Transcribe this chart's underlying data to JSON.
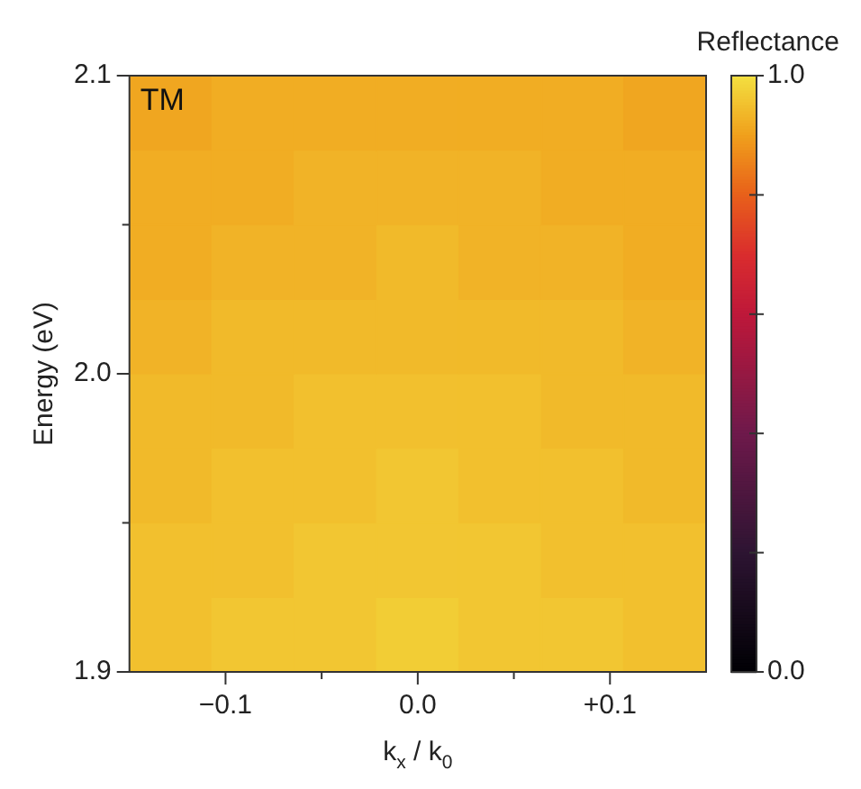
{
  "chart_data": {
    "type": "heatmap",
    "annotations": [
      "TM"
    ],
    "xlabel": "k$_{x}$ / k$_{0}$",
    "ylabel": "Energy (eV)",
    "clabel": "Reflectance",
    "xlim": [
      -0.15,
      0.15
    ],
    "xticks": [
      {
        "value": -0.1,
        "label": "−0.1"
      },
      {
        "value": -0.05,
        "label": null
      },
      {
        "value": 0,
        "label": "0.0"
      },
      {
        "value": 0.05,
        "label": null
      },
      {
        "value": 0.1,
        "label": "+0.1"
      }
    ],
    "ylim": [
      1.9,
      2.1
    ],
    "yticks": [
      {
        "value": 1.9,
        "label": "1.9"
      },
      {
        "value": 1.95,
        "label": null
      },
      {
        "value": 2.0,
        "label": "2.0"
      },
      {
        "value": 2.05,
        "label": null
      },
      {
        "value": 2.1,
        "label": "2.1"
      }
    ],
    "clim": [
      0,
      1
    ],
    "cticks": [
      {
        "value": 0,
        "label": "0.0"
      },
      {
        "value": 0.2,
        "label": null
      },
      {
        "value": 0.4,
        "label": null
      },
      {
        "value": 0.6,
        "label": null
      },
      {
        "value": 0.8,
        "label": null
      },
      {
        "value": 1,
        "label": "1.0"
      }
    ],
    "cells": [
      [
        0.91,
        0.92,
        0.92,
        0.92,
        0.92,
        0.92,
        0.91
      ],
      [
        0.92,
        0.92,
        0.93,
        0.93,
        0.93,
        0.92,
        0.92
      ],
      [
        0.92,
        0.93,
        0.93,
        0.94,
        0.93,
        0.93,
        0.92
      ],
      [
        0.93,
        0.94,
        0.94,
        0.94,
        0.94,
        0.94,
        0.93
      ],
      [
        0.94,
        0.94,
        0.95,
        0.95,
        0.95,
        0.94,
        0.94
      ],
      [
        0.94,
        0.95,
        0.95,
        0.96,
        0.95,
        0.95,
        0.94
      ],
      [
        0.95,
        0.95,
        0.96,
        0.96,
        0.96,
        0.95,
        0.95
      ],
      [
        0.95,
        0.96,
        0.96,
        0.97,
        0.96,
        0.96,
        0.95
      ]
    ],
    "grid": false
  }
}
